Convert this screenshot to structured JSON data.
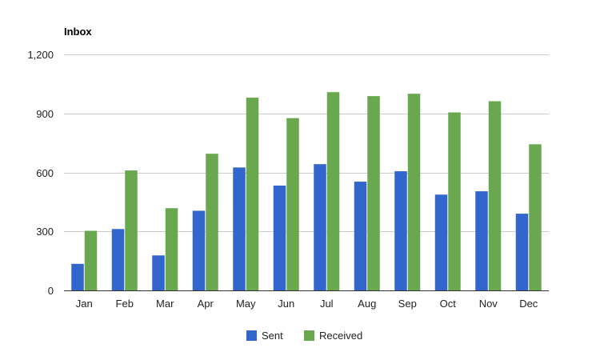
{
  "chart_data": {
    "type": "bar",
    "title": "Inbox",
    "xlabel": "",
    "ylabel": "",
    "ylim": [
      0,
      1200
    ],
    "yticks": [
      0,
      300,
      600,
      900,
      1200
    ],
    "ytick_labels": [
      "0",
      "300",
      "600",
      "900",
      "1,200"
    ],
    "grid": true,
    "legend_position": "bottom",
    "categories": [
      "Jan",
      "Feb",
      "Mar",
      "Apr",
      "May",
      "Jun",
      "Jul",
      "Aug",
      "Sep",
      "Oct",
      "Nov",
      "Dec"
    ],
    "series": [
      {
        "name": "Sent",
        "color": "#3366cc",
        "values": [
          135,
          312,
          178,
          405,
          625,
          533,
          642,
          553,
          606,
          487,
          504,
          390
        ]
      },
      {
        "name": "Received",
        "color": "#6aa84f",
        "values": [
          303,
          610,
          418,
          695,
          980,
          876,
          1008,
          988,
          1000,
          905,
          962,
          743
        ]
      }
    ]
  }
}
